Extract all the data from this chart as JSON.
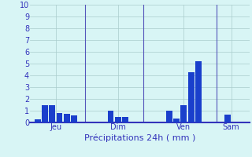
{
  "bar_positions": [
    1,
    2,
    3,
    4,
    5,
    6,
    11,
    12,
    13,
    19,
    20,
    21,
    22,
    23,
    27
  ],
  "bar_values": [
    0.3,
    1.5,
    1.5,
    0.8,
    0.75,
    0.6,
    1.0,
    0.5,
    0.5,
    1.0,
    0.35,
    1.5,
    4.3,
    5.2,
    0.7
  ],
  "bar_color": "#1a3fcc",
  "bar_width": 0.85,
  "xlabel": "Précipitations 24h ( mm )",
  "xlabel_color": "#3333bb",
  "xlabel_fontsize": 8,
  "ylim": [
    0,
    10
  ],
  "yticks": [
    0,
    1,
    2,
    3,
    4,
    5,
    6,
    7,
    8,
    9,
    10
  ],
  "day_labels": [
    {
      "label": "Jeu",
      "x": 3.5
    },
    {
      "label": "Dim",
      "x": 12.0
    },
    {
      "label": "Ven",
      "x": 21.0
    },
    {
      "label": "Sam",
      "x": 27.5
    }
  ],
  "day_vlines": [
    7.5,
    15.5,
    25.5
  ],
  "vline_color": "#5555bb",
  "bg_color": "#d8f5f5",
  "grid_color": "#aacccc",
  "tick_color": "#3333bb",
  "axis_color": "#3333bb",
  "xlim": [
    0,
    30
  ]
}
